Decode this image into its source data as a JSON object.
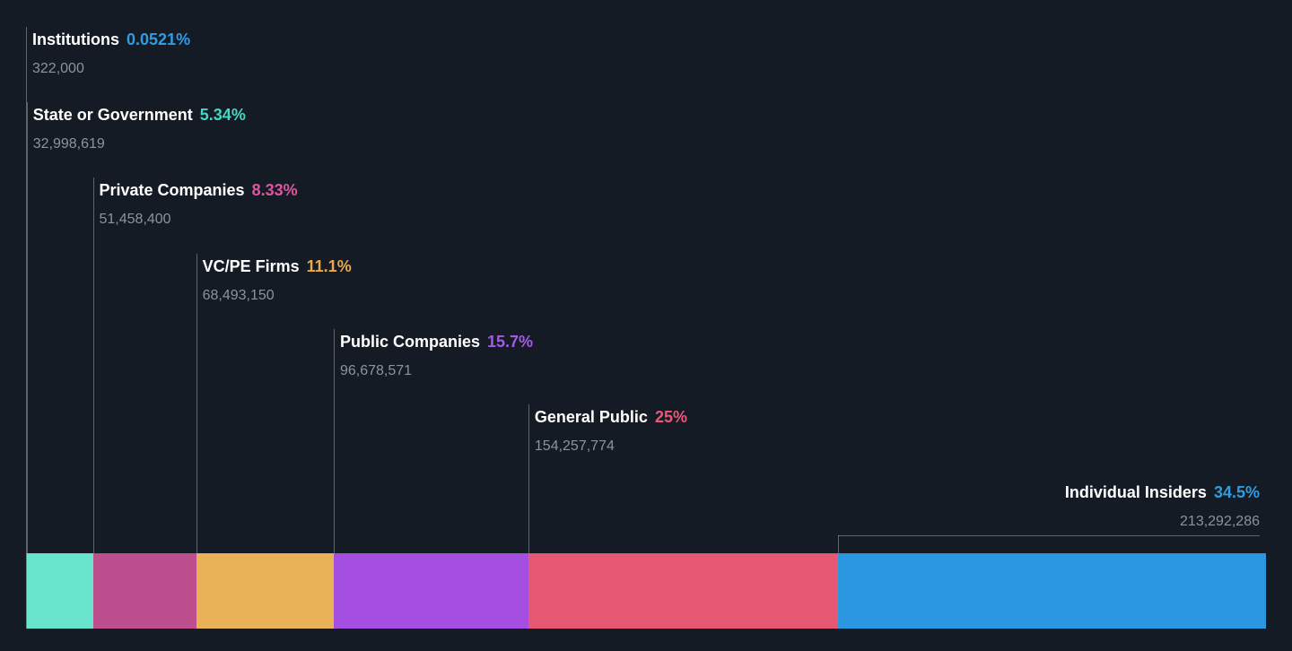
{
  "chart_data": {
    "type": "bar",
    "orientation": "horizontal",
    "stacked": true,
    "grid": false,
    "legend_position": "callouts-above-bar",
    "segments": [
      {
        "label": "Institutions",
        "percent": 0.0521,
        "percent_label": "0.0521%",
        "shares": 322000,
        "shares_label": "322,000",
        "bar_color": "#2e9de3",
        "percent_text_color": "#2e9de3"
      },
      {
        "label": "State or Government",
        "percent": 5.34,
        "percent_label": "5.34%",
        "shares": 32998619,
        "shares_label": "32,998,619",
        "bar_color": "#68e4cc",
        "percent_text_color": "#43d9c0"
      },
      {
        "label": "Private Companies",
        "percent": 8.33,
        "percent_label": "8.33%",
        "shares": 51458400,
        "shares_label": "51,458,400",
        "bar_color": "#bd4f8e",
        "percent_text_color": "#de55a1"
      },
      {
        "label": "VC/PE Firms",
        "percent": 11.1,
        "percent_label": "11.1%",
        "shares": 68493150,
        "shares_label": "68,493,150",
        "bar_color": "#e9b259",
        "percent_text_color": "#e8a94d"
      },
      {
        "label": "Public Companies",
        "percent": 15.7,
        "percent_label": "15.7%",
        "shares": 96678571,
        "shares_label": "96,678,571",
        "bar_color": "#a44fe2",
        "percent_text_color": "#a55ae6"
      },
      {
        "label": "General Public",
        "percent": 25,
        "percent_label": "25%",
        "shares": 154257774,
        "shares_label": "154,257,774",
        "bar_color": "#e65872",
        "percent_text_color": "#ee5677"
      },
      {
        "label": "Individual Insiders",
        "percent": 34.5,
        "percent_label": "34.5%",
        "shares": 213292286,
        "shares_label": "213,292,286",
        "bar_color": "#2b97e0",
        "percent_text_color": "#2e9de3"
      }
    ],
    "colors": {
      "background": "#151b24",
      "label_text": "#ffffff",
      "count_text": "#8b939e",
      "leader_line": "rgba(255,255,255,0.32)"
    }
  }
}
